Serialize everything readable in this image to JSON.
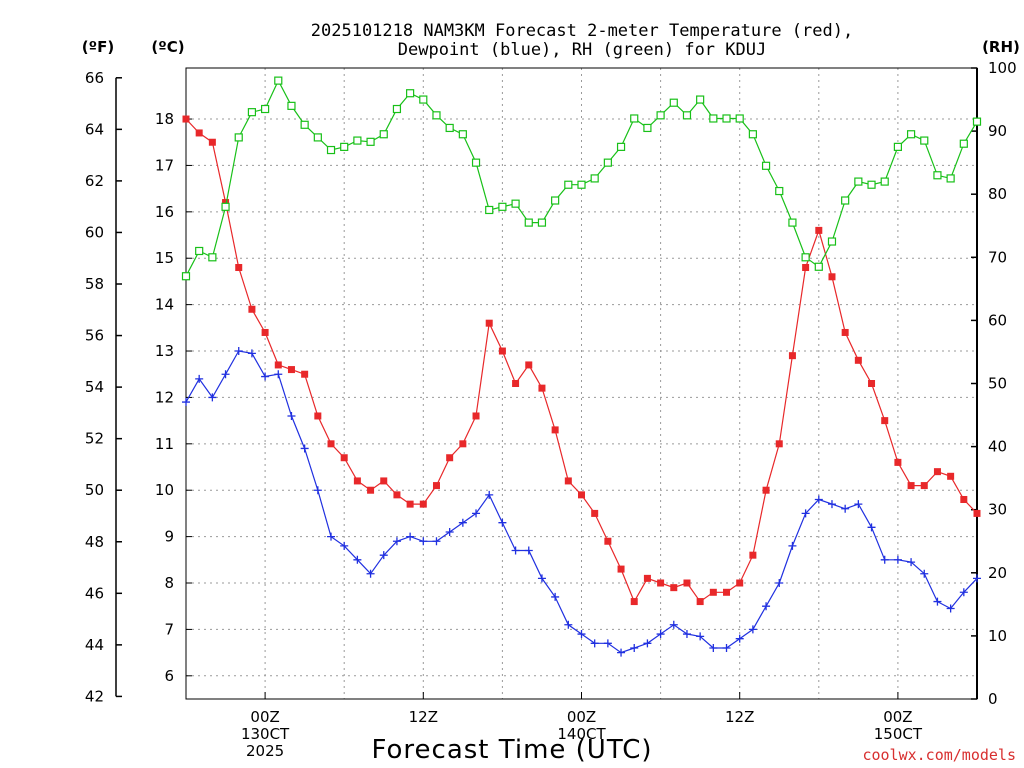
{
  "colors": {
    "temperature": "#e8282a",
    "dewpoint": "#2030e0",
    "rh": "#18c018",
    "credit": "#d83030",
    "grid": "#9a9a9a"
  },
  "chart_data": {
    "type": "line",
    "title_line1": "2025101218 NAM3KM Forecast 2-meter Temperature (red),",
    "title_line2": "Dewpoint (blue), RH (green) for KDUJ",
    "xlabel": "Forecast Time (UTC)",
    "credit": "coolwx.com/models",
    "left_outer_unit": "(ºF)",
    "left_inner_unit": "(ºC)",
    "right_unit": "(RH)",
    "x_range_hours": [
      -6,
      54
    ],
    "y_celsius_range": [
      5.5,
      19.1
    ],
    "y_fahrenheit_ticks": [
      42,
      44,
      46,
      48,
      50,
      52,
      54,
      56,
      58,
      60,
      62,
      64,
      66
    ],
    "y_celsius_ticks": [
      6,
      7,
      8,
      9,
      10,
      11,
      12,
      13,
      14,
      15,
      16,
      17,
      18
    ],
    "y_rh_ticks": [
      0,
      10,
      20,
      30,
      40,
      50,
      60,
      70,
      80,
      90,
      100
    ],
    "x_ticks": [
      {
        "hour": 0,
        "lines": [
          "00Z",
          "130CT",
          "2025"
        ]
      },
      {
        "hour": 12,
        "lines": [
          "12Z"
        ]
      },
      {
        "hour": 24,
        "lines": [
          "00Z",
          "140CT"
        ]
      },
      {
        "hour": 36,
        "lines": [
          "12Z"
        ]
      },
      {
        "hour": 48,
        "lines": [
          "00Z",
          "150CT"
        ]
      }
    ],
    "forecast_hours": [
      -6,
      -5,
      -4,
      -3,
      -2,
      -1,
      0,
      1,
      2,
      3,
      4,
      5,
      6,
      7,
      8,
      9,
      10,
      11,
      12,
      13,
      14,
      15,
      16,
      17,
      18,
      19,
      20,
      21,
      22,
      23,
      24,
      25,
      26,
      27,
      28,
      29,
      30,
      31,
      32,
      33,
      34,
      35,
      36,
      37,
      38,
      39,
      40,
      41,
      42,
      43,
      44,
      45,
      46,
      47,
      48,
      49,
      50,
      51,
      52,
      53,
      54
    ],
    "series": [
      {
        "name": "2-meter Temperature",
        "unit": "°C",
        "color": "#e8282a",
        "marker": "filled-square",
        "values": [
          18.0,
          17.7,
          17.5,
          16.2,
          14.8,
          13.9,
          13.4,
          12.7,
          12.6,
          12.5,
          11.6,
          11.0,
          10.7,
          10.2,
          10.0,
          10.2,
          9.9,
          9.7,
          9.7,
          10.1,
          10.7,
          11.0,
          11.6,
          13.6,
          13.0,
          12.3,
          12.7,
          12.2,
          11.3,
          10.2,
          9.9,
          9.5,
          8.9,
          8.3,
          7.6,
          8.1,
          8.0,
          7.9,
          8.0,
          7.6,
          7.8,
          7.8,
          8.0,
          8.6,
          10.0,
          11.0,
          12.9,
          14.8,
          15.6,
          14.6,
          13.4,
          12.8,
          12.3,
          11.5,
          10.6,
          10.1,
          10.1,
          10.4,
          10.3,
          9.8,
          9.5
        ]
      },
      {
        "name": "Dewpoint",
        "unit": "°C",
        "color": "#2030e0",
        "marker": "plus",
        "values": [
          11.9,
          12.4,
          12.0,
          12.5,
          13.0,
          12.95,
          12.45,
          12.5,
          11.6,
          10.9,
          10.0,
          9.0,
          8.8,
          8.5,
          8.2,
          8.6,
          8.9,
          9.0,
          8.9,
          8.9,
          9.1,
          9.3,
          9.5,
          9.9,
          9.3,
          8.7,
          8.7,
          8.1,
          7.7,
          7.1,
          6.9,
          6.7,
          6.7,
          6.5,
          6.6,
          6.7,
          6.9,
          7.1,
          6.9,
          6.85,
          6.6,
          6.6,
          6.8,
          7.0,
          7.5,
          8.0,
          8.8,
          9.5,
          9.8,
          9.7,
          9.6,
          9.7,
          9.2,
          8.5,
          8.5,
          8.45,
          8.2,
          7.6,
          7.45,
          7.8,
          8.1
        ]
      },
      {
        "name": "Relative Humidity",
        "unit": "%",
        "color": "#18c018",
        "marker": "open-square",
        "values": [
          67,
          71,
          70,
          78,
          89,
          93,
          93.5,
          98,
          94,
          91,
          89,
          87,
          87.5,
          88.5,
          88.3,
          89.5,
          93.5,
          96,
          95,
          92.5,
          90.5,
          89.5,
          85,
          77.5,
          78,
          78.5,
          75.5,
          75.5,
          79,
          81.5,
          81.5,
          82.5,
          85,
          87.5,
          92,
          90.5,
          92.5,
          94.5,
          92.5,
          95,
          92,
          92,
          92,
          89.5,
          84.5,
          80.5,
          75.5,
          70,
          68.5,
          72.5,
          79,
          82,
          81.5,
          82,
          87.5,
          89.5,
          88.5,
          83,
          82.5,
          88,
          91.5
        ]
      }
    ]
  }
}
